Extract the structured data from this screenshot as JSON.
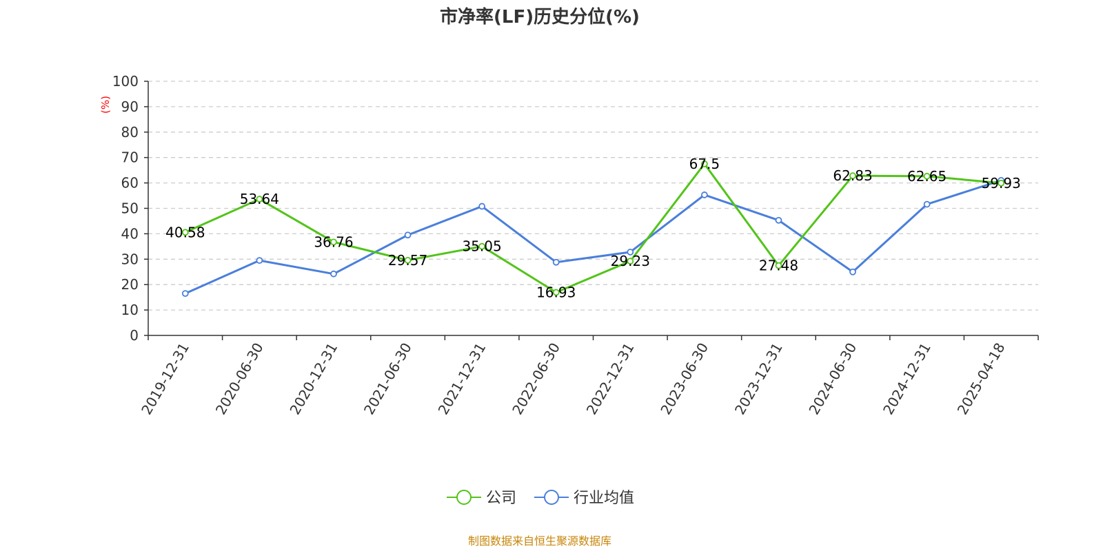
{
  "chart_data": {
    "type": "line",
    "title": "市净率(LF)历史分位(%)",
    "ylabel": "(%)",
    "ylim": [
      0,
      100
    ],
    "yticks": [
      0,
      10,
      20,
      30,
      40,
      50,
      60,
      70,
      80,
      90,
      100
    ],
    "categories": [
      "2019-12-31",
      "2020-06-30",
      "2020-12-31",
      "2021-06-30",
      "2021-12-31",
      "2022-06-30",
      "2022-12-31",
      "2023-06-30",
      "2023-12-31",
      "2024-06-30",
      "2024-12-31",
      "2025-04-18"
    ],
    "grid": true,
    "legend_position": "bottom-center",
    "series": [
      {
        "name": "公司",
        "color": "#52c41a",
        "values": [
          40.58,
          53.64,
          36.76,
          29.57,
          35.05,
          16.93,
          29.23,
          67.5,
          27.48,
          62.83,
          62.65,
          59.93
        ],
        "labels": [
          "40.58",
          "53.64",
          "36.76",
          "29.57",
          "35.05",
          "16.93",
          "29.23",
          "67.5",
          "27.48",
          "62.83",
          "62.65",
          "59.93"
        ]
      },
      {
        "name": "行业均值",
        "color": "#4a7fdb",
        "values": [
          16.5,
          29.5,
          24.2,
          39.5,
          50.8,
          28.8,
          32.8,
          55.3,
          45.3,
          25.0,
          51.6,
          61.0
        ]
      }
    ]
  },
  "source": "制图数据来自恒生聚源数据库",
  "colors": {
    "unit": "#ff0000",
    "source": "#c8860a",
    "axis": "#333333",
    "grid": "#cccccc"
  }
}
